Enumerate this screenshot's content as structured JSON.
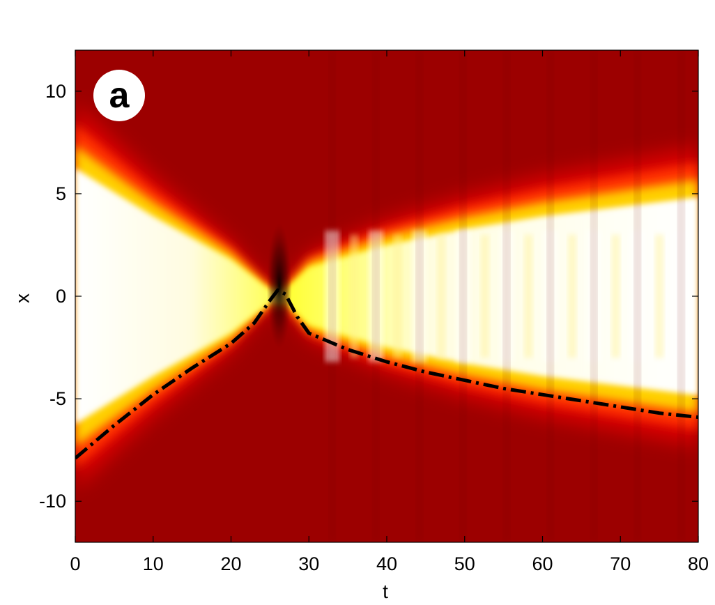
{
  "chart_data": {
    "type": "heatmap",
    "panel_label": "a",
    "xlabel": "t",
    "ylabel": "x",
    "xlim": [
      0,
      80
    ],
    "ylim": [
      -12,
      12
    ],
    "x_ticks": [
      0,
      10,
      20,
      30,
      40,
      50,
      60,
      70,
      80
    ],
    "y_ticks": [
      -10,
      -5,
      0,
      5,
      10
    ],
    "colormap": [
      "#9c0000",
      "#ff2000",
      "#ffff00",
      "#ffffff"
    ],
    "background_color": "#9c0000",
    "dashdot_line": {
      "color": "#000000",
      "style": "dash-dot",
      "points": [
        {
          "x": 0,
          "y": -7.9
        },
        {
          "x": 5,
          "y": -6.3
        },
        {
          "x": 10,
          "y": -4.8
        },
        {
          "x": 15,
          "y": -3.5
        },
        {
          "x": 20,
          "y": -2.3
        },
        {
          "x": 23,
          "y": -1.3
        },
        {
          "x": 25,
          "y": -0.2
        },
        {
          "x": 26,
          "y": 0.3
        },
        {
          "x": 27,
          "y": 0.1
        },
        {
          "x": 28.5,
          "y": -1.0
        },
        {
          "x": 30,
          "y": -1.8
        },
        {
          "x": 35,
          "y": -2.6
        },
        {
          "x": 40,
          "y": -3.2
        },
        {
          "x": 45,
          "y": -3.7
        },
        {
          "x": 50,
          "y": -4.1
        },
        {
          "x": 55,
          "y": -4.5
        },
        {
          "x": 60,
          "y": -4.8
        },
        {
          "x": 65,
          "y": -5.1
        },
        {
          "x": 70,
          "y": -5.4
        },
        {
          "x": 75,
          "y": -5.7
        },
        {
          "x": 80,
          "y": -5.9
        }
      ]
    },
    "soliton_upper_edge": [
      {
        "x": 0,
        "y": 8.0
      },
      {
        "x": 10,
        "y": 5.0
      },
      {
        "x": 20,
        "y": 2.3
      },
      {
        "x": 25,
        "y": 0.4
      },
      {
        "x": 27,
        "y": 0.4
      },
      {
        "x": 30,
        "y": 1.8
      },
      {
        "x": 40,
        "y": 3.2
      },
      {
        "x": 50,
        "y": 4.2
      },
      {
        "x": 60,
        "y": 5.0
      },
      {
        "x": 70,
        "y": 5.6
      },
      {
        "x": 80,
        "y": 6.2
      }
    ]
  }
}
